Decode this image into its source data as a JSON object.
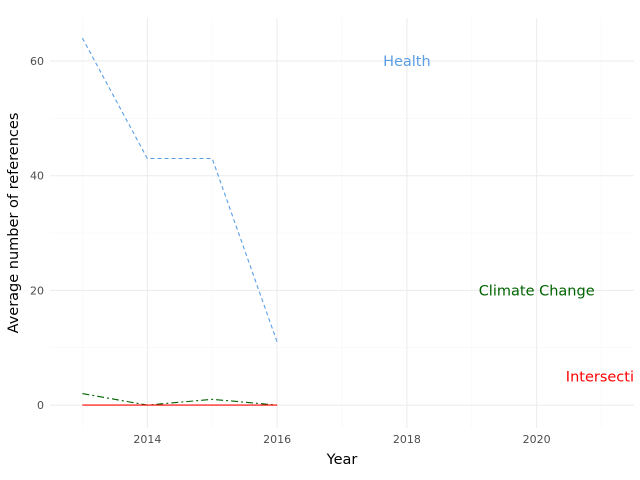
{
  "chart_data": {
    "type": "line",
    "title": "",
    "xlabel": "Year",
    "ylabel": "Average number of references",
    "xlim": [
      2012.5,
      2021.5
    ],
    "ylim": [
      -4,
      67.5
    ],
    "xticks": [
      2014,
      2016,
      2018,
      2020
    ],
    "yticks": [
      0,
      20,
      40,
      60
    ],
    "grid": true,
    "legend": "none",
    "series": [
      {
        "name": "Health",
        "color": "#5b9ee6",
        "dash": "4,3",
        "x": [
          2013,
          2014,
          2015,
          2016
        ],
        "y": [
          64,
          43,
          43,
          11
        ],
        "label_pos": [
          2018,
          60
        ]
      },
      {
        "name": "Climate Change",
        "color": "#006400",
        "dash": "7,3,2,3",
        "x": [
          2013,
          2014,
          2015,
          2016
        ],
        "y": [
          2,
          0,
          1,
          0
        ],
        "label_pos": [
          2020,
          20
        ]
      },
      {
        "name": "Intersecti",
        "color": "#ff0000",
        "dash": "",
        "x": [
          2013,
          2014,
          2015,
          2016
        ],
        "y": [
          0,
          0,
          0,
          0
        ],
        "label_pos": [
          2021.5,
          5
        ]
      }
    ]
  }
}
